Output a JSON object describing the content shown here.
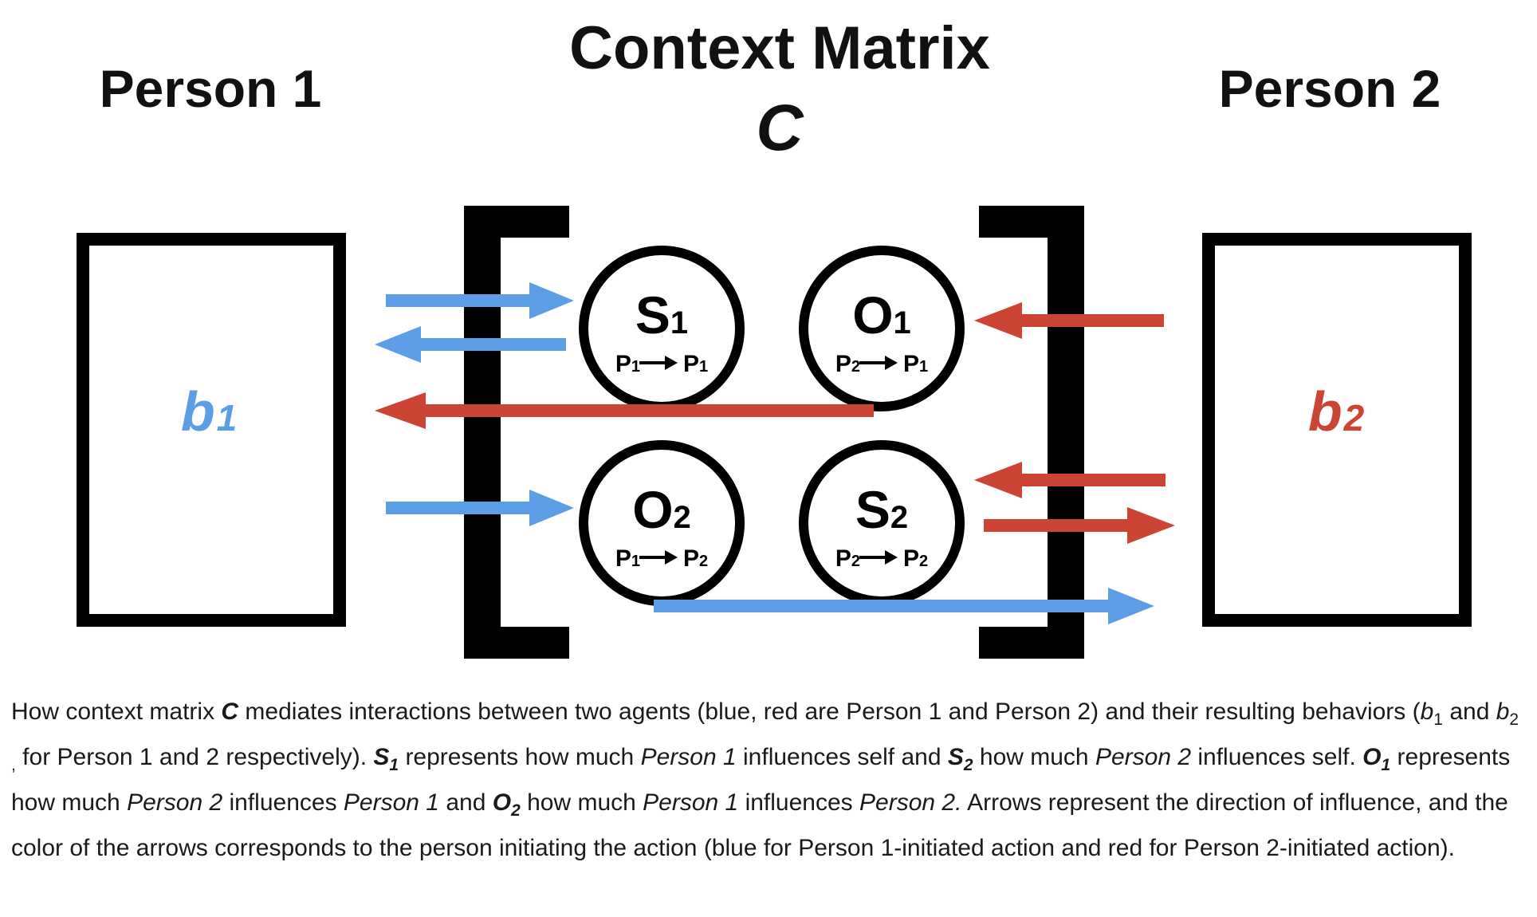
{
  "colors": {
    "person1_blue": "#5b9ee6",
    "person2_red": "#cc4433",
    "ink": "#000000"
  },
  "headings": {
    "person1": "Person 1",
    "person2": "Person 2",
    "matrix_title": "Context Matrix",
    "matrix_symbol": "C"
  },
  "boxes": {
    "b1": {
      "base": "b",
      "sub": "1"
    },
    "b2": {
      "base": "b",
      "sub": "2"
    }
  },
  "circles": {
    "s1": {
      "letter": "S",
      "sub": "1",
      "from": "P",
      "from_sub": "1",
      "to": "P",
      "to_sub": "1"
    },
    "o1": {
      "letter": "O",
      "sub": "1",
      "from": "P",
      "from_sub": "2",
      "to": "P",
      "to_sub": "1"
    },
    "o2": {
      "letter": "O",
      "sub": "2",
      "from": "P",
      "from_sub": "1",
      "to": "P",
      "to_sub": "2"
    },
    "s2": {
      "letter": "S",
      "sub": "2",
      "from": "P",
      "from_sub": "2",
      "to": "P",
      "to_sub": "2"
    }
  },
  "caption": {
    "p1": "How context matrix ",
    "c": "C",
    "p2": " mediates interactions between two agents (blue, red are Person 1 and Person 2) and their resulting behaviors (",
    "b1_base": "b",
    "b1_sub": "1",
    "p3": " and ",
    "b2_base": "b",
    "b2_sub": "2 ,",
    "p4": " for Person 1 and 2 respectively). ",
    "s1_base": "S",
    "s1_sub": "1",
    "p5": " represents how much ",
    "i_person1_a": "Person 1",
    "p6": " influences self and ",
    "s2_base": "S",
    "s2_sub": "2",
    "p7": " how much ",
    "i_person2_a": "Person 2",
    "p8": " influences self. ",
    "o1_base": "O",
    "o1_sub": "1",
    "p9": " represents how much ",
    "i_person2_b": "Person 2",
    "p10": " influences ",
    "i_person1_b": "Person 1",
    "p11": " and ",
    "o2_base": "O",
    "o2_sub": "2",
    "p12": " how much ",
    "i_person1_c": "Person 1",
    "p13": " influences ",
    "i_person2_c": "Person 2.",
    "p14": " Arrows represent the direction of influence, and the color of the arrows corresponds to the person initiating the action (blue for Person 1-initiated action and red for Person 2-initiated action)."
  }
}
